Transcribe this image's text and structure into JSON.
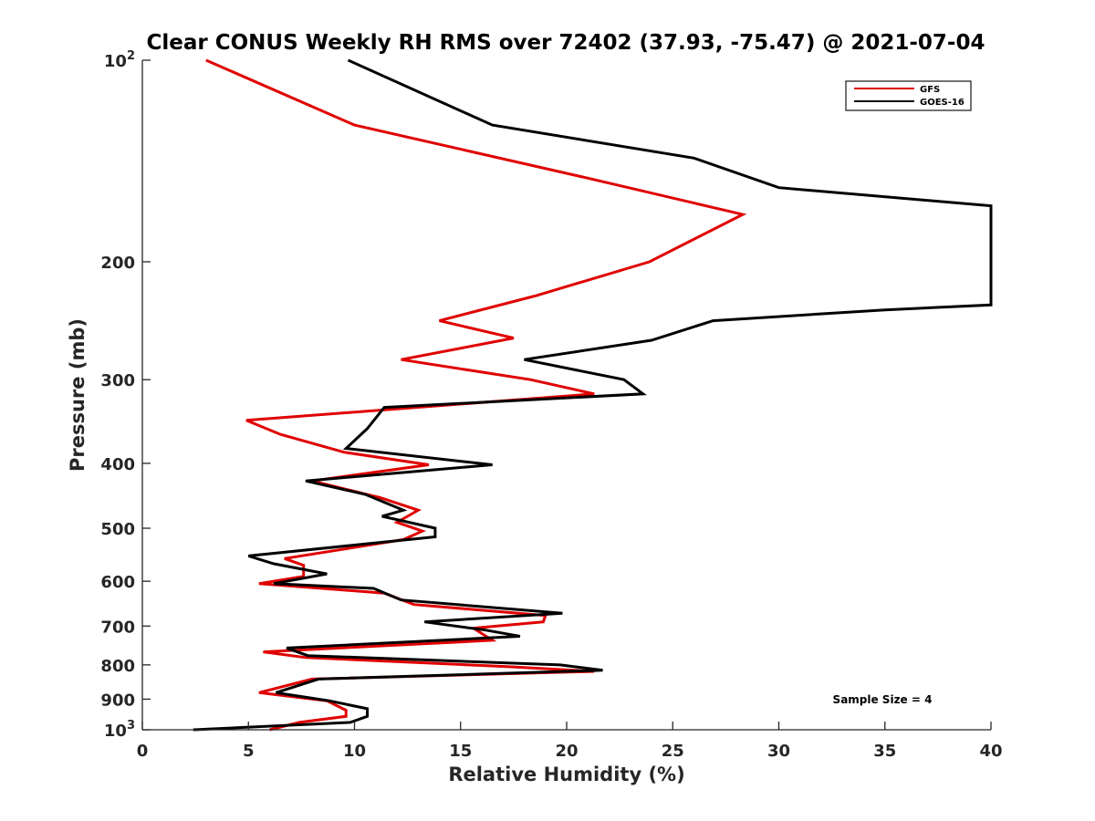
{
  "chart_data": {
    "type": "line",
    "title": "Clear CONUS Weekly RH RMS over 72402 (37.93, -75.47) @ 2021-07-04",
    "xlabel": "Relative Humidity (%)",
    "ylabel": "Pressure (mb)",
    "xlim": [
      0,
      40
    ],
    "ylim": [
      100,
      1000
    ],
    "y_scale": "log",
    "y_reversed": true,
    "x_ticks": [
      "0",
      "5",
      "10",
      "15",
      "20",
      "25",
      "30",
      "35",
      "40"
    ],
    "y_ticks": [
      {
        "value": 100,
        "base": "10",
        "exp": "2"
      },
      {
        "value": 200,
        "base": "200",
        "exp": ""
      },
      {
        "value": 300,
        "base": "300",
        "exp": ""
      },
      {
        "value": 400,
        "base": "400",
        "exp": ""
      },
      {
        "value": 500,
        "base": "500",
        "exp": ""
      },
      {
        "value": 600,
        "base": "600",
        "exp": ""
      },
      {
        "value": 700,
        "base": "700",
        "exp": ""
      },
      {
        "value": 800,
        "base": "800",
        "exp": ""
      },
      {
        "value": 900,
        "base": "900",
        "exp": ""
      },
      {
        "value": 1000,
        "base": "10",
        "exp": "3"
      }
    ],
    "legend_position": "top-right",
    "annotation": "Sample Size = 4",
    "series": [
      {
        "name": "GFS",
        "color": "#e00000",
        "points": [
          [
            3.0,
            100
          ],
          [
            10.0,
            125
          ],
          [
            21.0,
            150
          ],
          [
            28.3,
            170
          ],
          [
            23.9,
            200
          ],
          [
            18.5,
            225
          ],
          [
            14.0,
            245
          ],
          [
            17.5,
            260
          ],
          [
            12.2,
            280
          ],
          [
            18.3,
            300
          ],
          [
            21.3,
            315
          ],
          [
            4.9,
            345
          ],
          [
            6.5,
            362
          ],
          [
            9.5,
            385
          ],
          [
            13.5,
            402
          ],
          [
            8.0,
            425
          ],
          [
            11.2,
            450
          ],
          [
            13.0,
            470
          ],
          [
            12.0,
            490
          ],
          [
            13.2,
            505
          ],
          [
            12.3,
            520
          ],
          [
            6.7,
            555
          ],
          [
            7.6,
            568
          ],
          [
            7.6,
            590
          ],
          [
            5.5,
            605
          ],
          [
            11.4,
            625
          ],
          [
            12.8,
            650
          ],
          [
            19.0,
            675
          ],
          [
            18.9,
            690
          ],
          [
            15.6,
            705
          ],
          [
            16.5,
            735
          ],
          [
            5.7,
            765
          ],
          [
            7.7,
            780
          ],
          [
            17.3,
            805
          ],
          [
            21.3,
            818
          ],
          [
            8.0,
            840
          ],
          [
            5.5,
            880
          ],
          [
            8.7,
            905
          ],
          [
            9.6,
            935
          ],
          [
            9.6,
            955
          ],
          [
            7.4,
            975
          ],
          [
            6.0,
            1000
          ]
        ]
      },
      {
        "name": "GOES-16",
        "color": "#000000",
        "points": [
          [
            9.7,
            100
          ],
          [
            16.5,
            125
          ],
          [
            26.0,
            140
          ],
          [
            30.0,
            155
          ],
          [
            40.0,
            165
          ],
          [
            40.0,
            232
          ],
          [
            35.0,
            236
          ],
          [
            26.9,
            245
          ],
          [
            24.0,
            262
          ],
          [
            18.0,
            280
          ],
          [
            22.7,
            300
          ],
          [
            23.6,
            315
          ],
          [
            11.4,
            330
          ],
          [
            10.6,
            355
          ],
          [
            9.6,
            380
          ],
          [
            16.5,
            402
          ],
          [
            7.7,
            425
          ],
          [
            10.5,
            445
          ],
          [
            12.3,
            470
          ],
          [
            11.3,
            480
          ],
          [
            13.8,
            500
          ],
          [
            13.8,
            515
          ],
          [
            5.0,
            550
          ],
          [
            6.2,
            565
          ],
          [
            8.7,
            585
          ],
          [
            6.2,
            605
          ],
          [
            10.9,
            615
          ],
          [
            12.2,
            640
          ],
          [
            19.8,
            670
          ],
          [
            13.3,
            690
          ],
          [
            16.2,
            710
          ],
          [
            17.8,
            725
          ],
          [
            6.8,
            755
          ],
          [
            7.8,
            775
          ],
          [
            19.7,
            800
          ],
          [
            21.7,
            815
          ],
          [
            8.3,
            840
          ],
          [
            6.3,
            880
          ],
          [
            8.8,
            905
          ],
          [
            10.6,
            930
          ],
          [
            10.6,
            955
          ],
          [
            9.8,
            975
          ],
          [
            2.4,
            1000
          ]
        ]
      }
    ]
  }
}
